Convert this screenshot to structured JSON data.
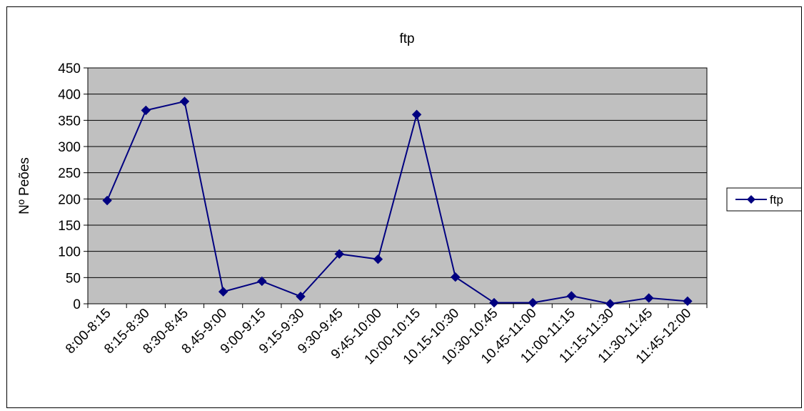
{
  "chart_data": {
    "type": "line",
    "title": "ftp",
    "xlabel": "",
    "ylabel": "Nº Peões",
    "categories": [
      "8:00-8:15",
      "8:15-8:30",
      "8:30-8:45",
      "8.45-9:00",
      "9:00-9:15",
      "9:15-9:30",
      "9:30-9:45",
      "9:45-10:00",
      "10:00-10:15",
      "10.15-10:30",
      "10:30-10:45",
      "10.45-11:00",
      "11:00-11:15",
      "11:15-11:30",
      "11:30-11:45",
      "11:45-12:00"
    ],
    "series": [
      {
        "name": "ftp",
        "values": [
          197,
          369,
          386,
          23,
          43,
          14,
          95,
          85,
          361,
          51,
          2,
          2,
          15,
          0,
          11,
          5
        ]
      }
    ],
    "ylim": [
      0,
      450
    ],
    "yticks": [
      0,
      50,
      100,
      150,
      200,
      250,
      300,
      350,
      400,
      450
    ],
    "grid": true,
    "legend": "right",
    "colors": {
      "series": "#000080",
      "plot_background": "#c0c0c0",
      "gridline": "#000000",
      "axis": "#000000"
    }
  }
}
